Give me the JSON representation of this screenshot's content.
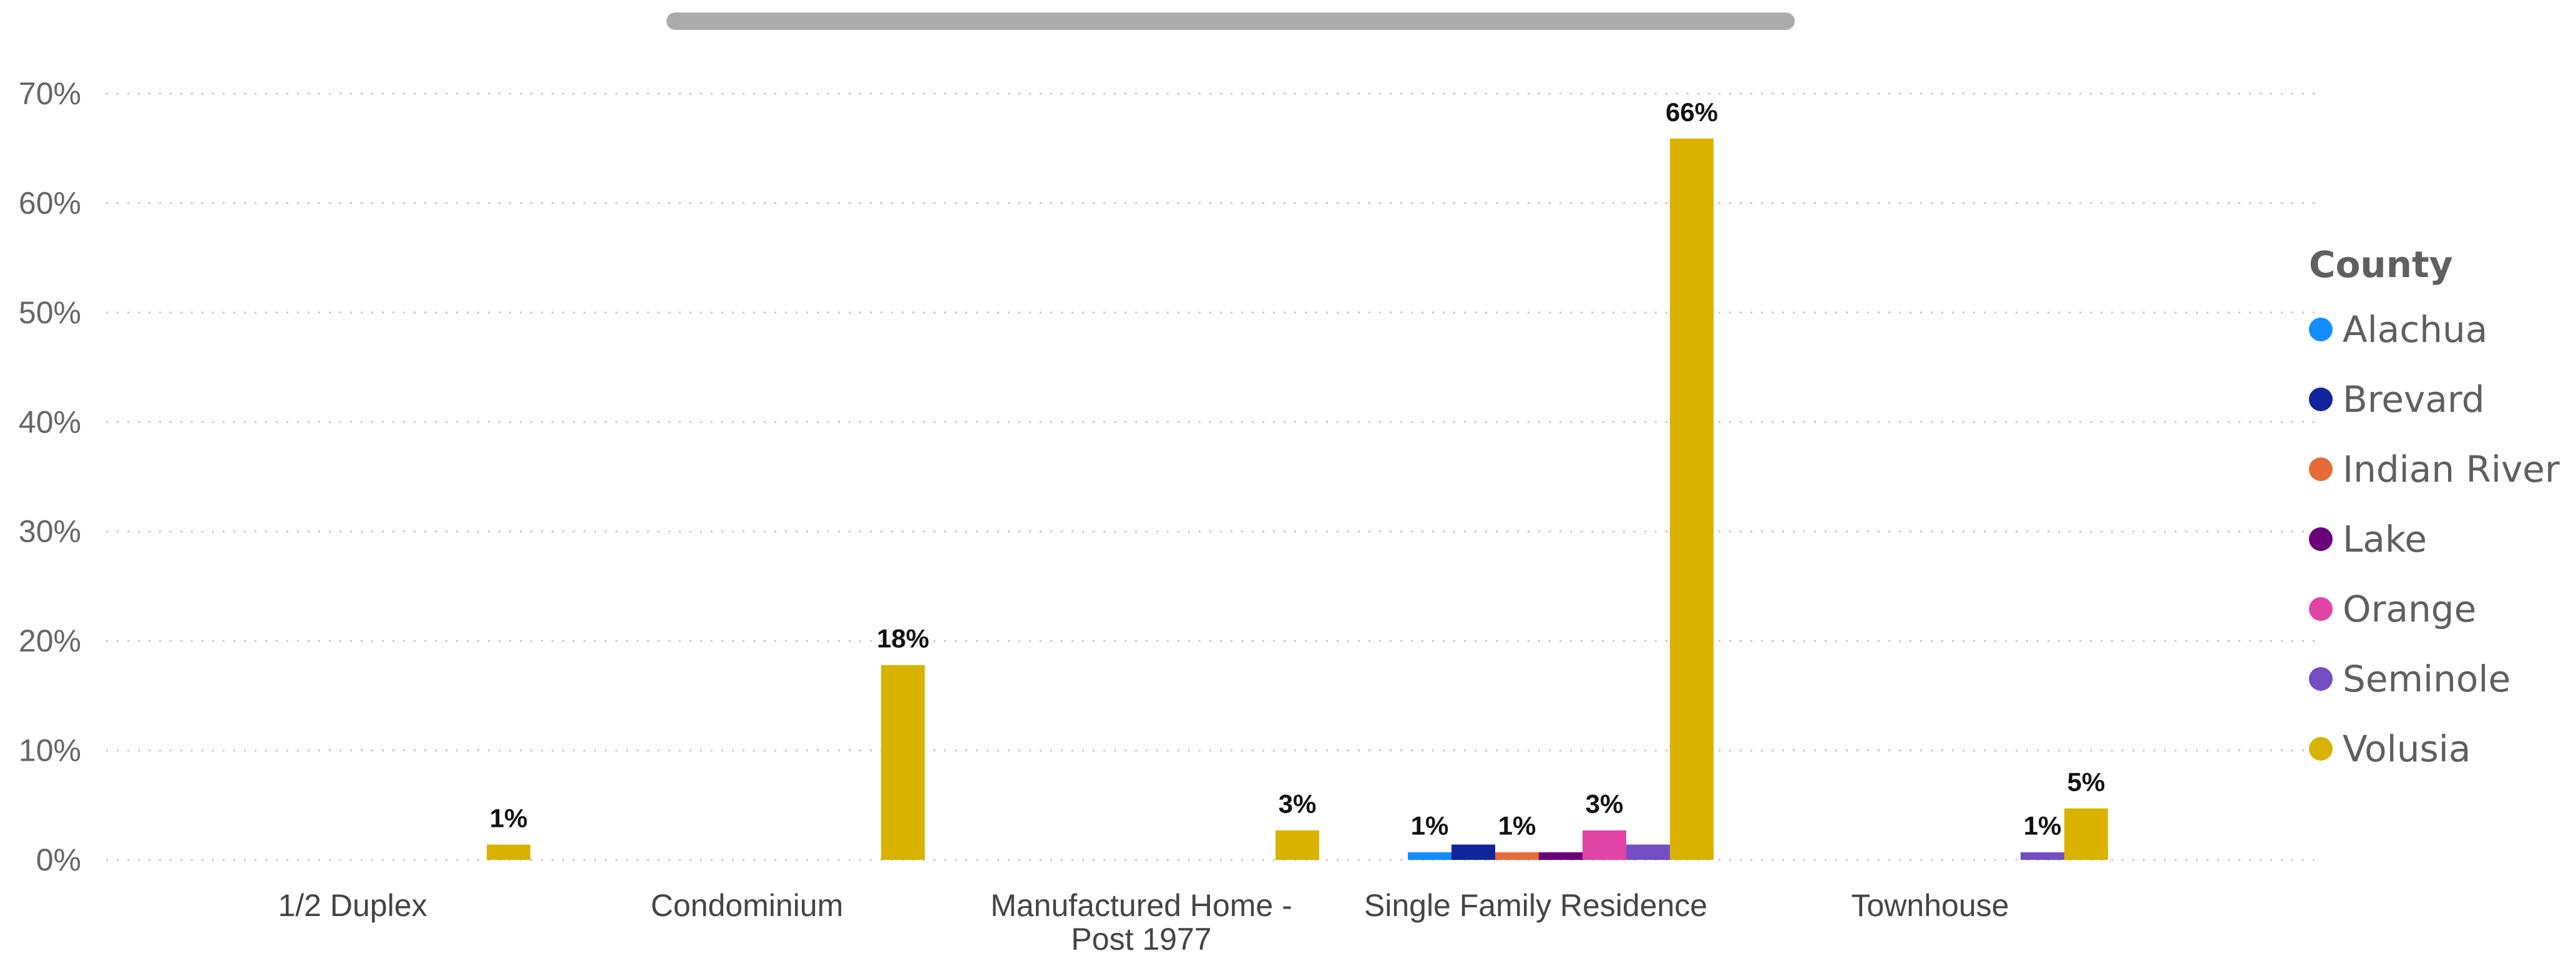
{
  "chart_data": {
    "type": "bar",
    "title": "",
    "xlabel": "",
    "ylabel": "",
    "ylim": [
      0,
      70
    ],
    "yticks": [
      "0%",
      "10%",
      "20%",
      "30%",
      "40%",
      "50%",
      "60%",
      "70%"
    ],
    "grid": true,
    "legend": {
      "title": "County",
      "placement": "right"
    },
    "categories": [
      [
        "1/2 Duplex"
      ],
      [
        "Condominium"
      ],
      [
        "Manufactured Home -",
        "Post 1977"
      ],
      [
        "Single Family Residence"
      ],
      [
        "Townhouse"
      ]
    ],
    "series": [
      {
        "name": "Alachua",
        "color": "#118DFF",
        "values": [
          null,
          null,
          null,
          0.7,
          null
        ],
        "labels": [
          "",
          "",
          "",
          "1%",
          ""
        ]
      },
      {
        "name": "Brevard",
        "color": "#12239E",
        "values": [
          null,
          null,
          null,
          1.4,
          null
        ],
        "labels": [
          "",
          "",
          "",
          "",
          ""
        ]
      },
      {
        "name": "Indian River",
        "color": "#E66C37",
        "values": [
          null,
          null,
          null,
          0.7,
          null
        ],
        "labels": [
          "",
          "",
          "",
          "1%",
          ""
        ]
      },
      {
        "name": "Lake",
        "color": "#6B007B",
        "values": [
          null,
          null,
          null,
          0.7,
          null
        ],
        "labels": [
          "",
          "",
          "",
          "",
          ""
        ]
      },
      {
        "name": "Orange",
        "color": "#E044A7",
        "values": [
          null,
          null,
          null,
          2.7,
          null
        ],
        "labels": [
          "",
          "",
          "",
          "3%",
          ""
        ]
      },
      {
        "name": "Seminole",
        "color": "#744EC2",
        "values": [
          null,
          null,
          null,
          1.4,
          0.7
        ],
        "labels": [
          "",
          "",
          "",
          "",
          "1%"
        ]
      },
      {
        "name": "Volusia",
        "color": "#D9B300",
        "values": [
          1.4,
          17.8,
          2.7,
          65.9,
          4.7
        ],
        "labels": [
          "1%",
          "18%",
          "3%",
          "66%",
          "5%"
        ]
      }
    ]
  }
}
